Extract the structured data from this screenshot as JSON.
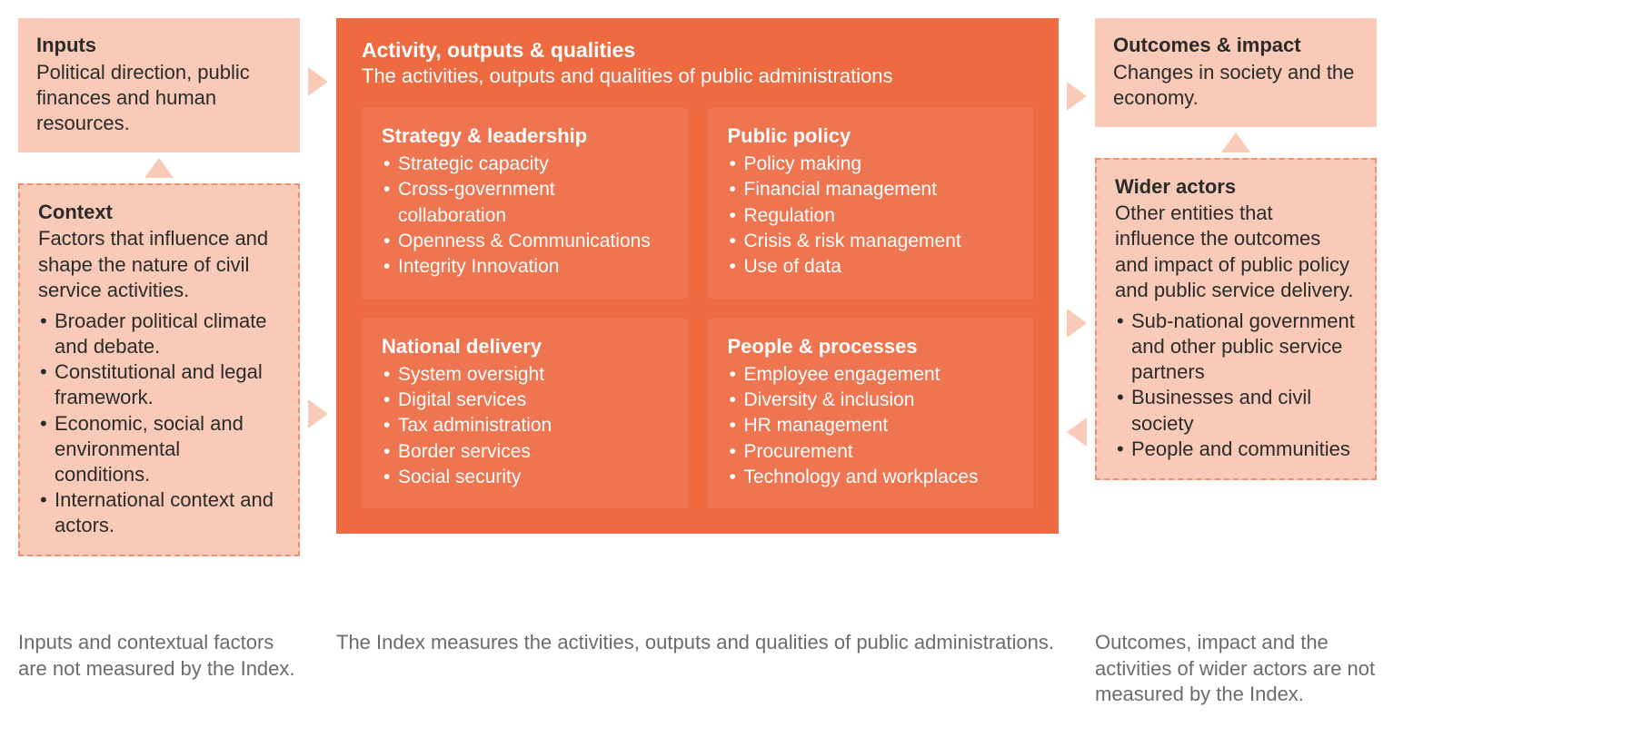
{
  "colors": {
    "lightOrange": "#f8cab7",
    "lightText": "#2b2b2b",
    "orange": "#ee6a40",
    "orangeDark": "#ea6139",
    "subPanel": "#ef7450",
    "white": "#ffffff",
    "footerGrey": "#6b6b6b",
    "dashedBorder": "#f08f6e"
  },
  "left": {
    "inputs": {
      "title": "Inputs",
      "desc": "Political direction, public finances and human resources."
    },
    "context": {
      "title": "Context",
      "desc": "Factors that influence and shape the nature of civil service activities.",
      "bullets": [
        "Broader political climate and debate.",
        "Constitutional and legal framework.",
        "Economic, social and environmental conditions.",
        "International context and actors."
      ]
    },
    "footer": "Inputs and contextual factors are not measured by the Index."
  },
  "center": {
    "title": "Activity, outputs & qualities",
    "sub": "The activities, outputs and qualities of public administrations",
    "quads": [
      {
        "title": "Strategy & leadership",
        "items": [
          "Strategic capacity",
          "Cross-government collaboration",
          "Openness & Communications",
          "Integrity Innovation"
        ]
      },
      {
        "title": "Public policy",
        "items": [
          "Policy making",
          "Financial management",
          "Regulation",
          "Crisis & risk management",
          "Use of data"
        ]
      },
      {
        "title": "National delivery",
        "items": [
          "System oversight",
          "Digital services",
          "Tax administration",
          "Border services",
          "Social security"
        ]
      },
      {
        "title": "People & processes",
        "items": [
          "Employee engagement",
          "Diversity & inclusion",
          "HR management",
          "Procurement",
          "Technology and workplaces"
        ]
      }
    ],
    "footer": "The Index measures the activities, outputs and qualities of public administrations."
  },
  "right": {
    "outcomes": {
      "title": "Outcomes & impact",
      "desc": "Changes in society and the economy."
    },
    "wider": {
      "title": "Wider actors",
      "desc": "Other entities that influence the outcomes and impact of public policy and public service delivery.",
      "bullets": [
        "Sub-national government and other public service partners",
        "Businesses and civil society",
        "People and communities"
      ]
    },
    "footer": "Outcomes, impact and the activities of wider actors are not measured by the Index."
  },
  "arrows": {
    "leftTopY": 54,
    "leftBottomY": 420,
    "rightTopY": 70,
    "rightMid1Y": 320,
    "rightMid2Y": 440,
    "arrowColor": "#f8cab7"
  }
}
